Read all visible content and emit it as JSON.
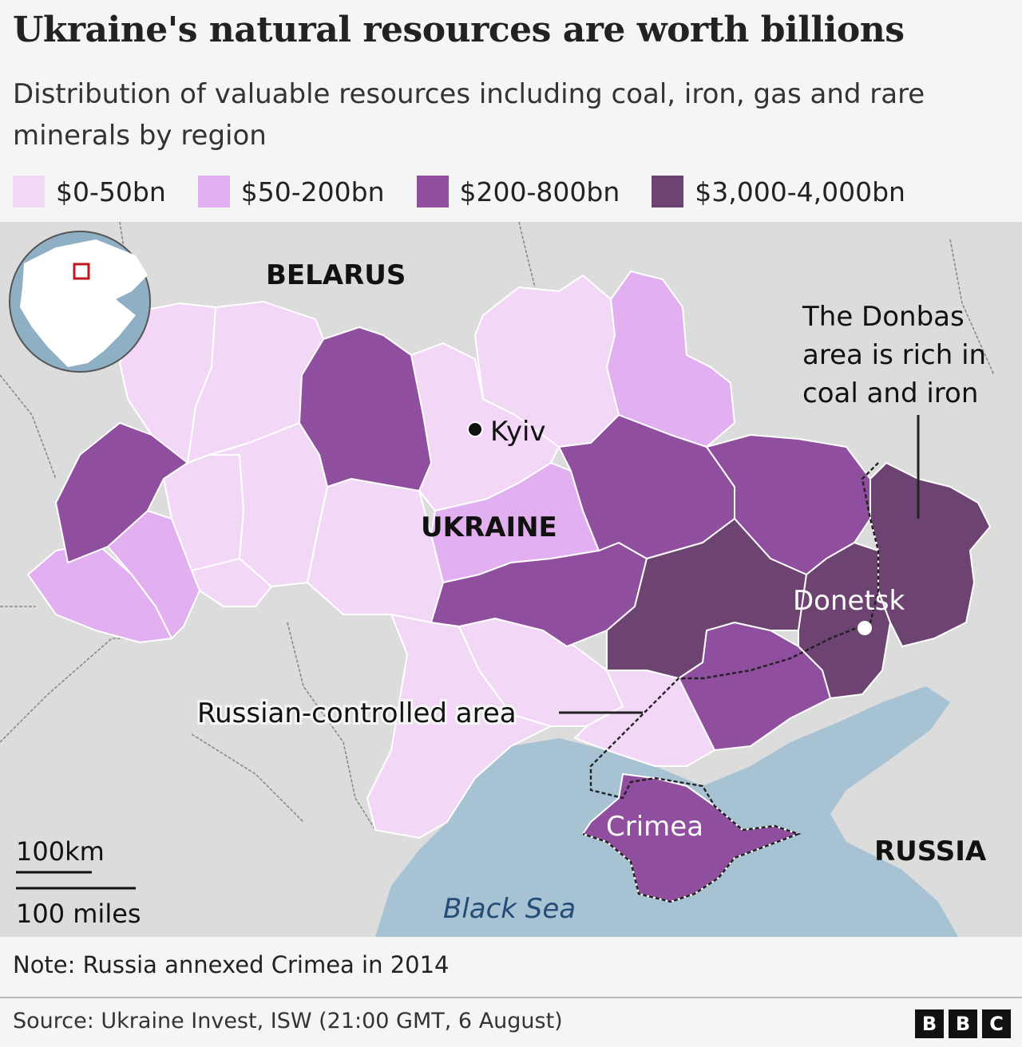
{
  "header": {
    "title": "Ukraine's natural resources are worth billions",
    "subtitle": "Distribution of valuable resources including coal, iron, gas and rare minerals by region"
  },
  "legend": [
    {
      "label": "$0-50bn",
      "color": "#f2d7f6"
    },
    {
      "label": "$50-200bn",
      "color": "#e2aff0"
    },
    {
      "label": "$200-800bn",
      "color": "#904e9e"
    },
    {
      "label": "$3,000-4,000bn",
      "color": "#6d4471"
    }
  ],
  "map": {
    "countries": {
      "belarus": "BELARUS",
      "ukraine": "UKRAINE",
      "russia": "RUSSIA"
    },
    "sea": "Black Sea",
    "cities": {
      "kyiv": "Kyiv",
      "donetsk": "Donetsk"
    },
    "crimea": "Crimea",
    "annotations": {
      "donbas": [
        "The Donbas",
        "area is rich in",
        "coal and iron"
      ],
      "russian_controlled": "Russian-controlled area"
    },
    "scale": {
      "km": "100km",
      "miles": "100 miles"
    },
    "colors": {
      "land": "#dcdcdc",
      "sea": "#a6c2d3",
      "globe_land": "#ffffff",
      "globe_sea": "#8fb0c4",
      "marker": "#c0161d"
    }
  },
  "footer": {
    "note": "Note: Russia annexed Crimea in 2014",
    "source": "Source: Ukraine Invest, ISW (21:00 GMT, 6 August)",
    "brand": [
      "B",
      "B",
      "C"
    ]
  }
}
